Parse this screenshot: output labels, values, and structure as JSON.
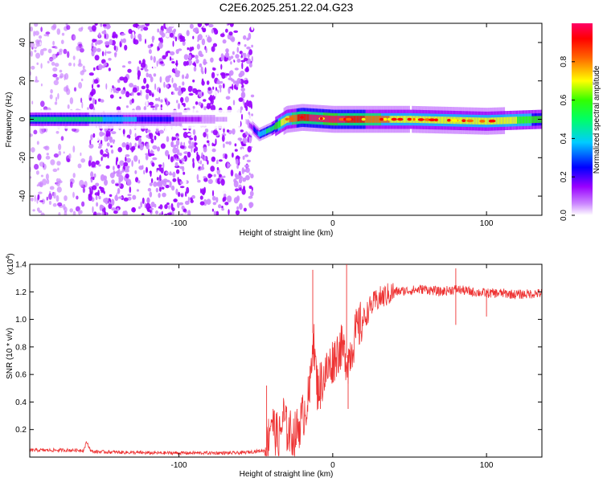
{
  "title": "C2E6.2025.251.22.04.G23",
  "chart_data": [
    {
      "type": "heatmap",
      "xlabel": "Height of straight line (km)",
      "ylabel": "Frequency (Hz)",
      "xlim": [
        -197,
        136
      ],
      "ylim": [
        -50,
        50
      ],
      "x_ticks": [
        -100,
        0,
        100
      ],
      "x_tick_labels": [
        "-100",
        "0",
        "100"
      ],
      "y_ticks": [
        -40,
        -20,
        0,
        20,
        40
      ],
      "y_tick_labels": [
        "-40",
        "-20",
        "0",
        "20",
        "40"
      ],
      "grid": false,
      "colorbar": {
        "label": "Normalized spectral amplitude",
        "range": [
          0.0,
          1.0
        ],
        "ticks": [
          0.0,
          0.2,
          0.4,
          0.6,
          0.8
        ],
        "tick_labels": [
          "0.0",
          "0.2",
          "0.4",
          "0.6",
          "0.8"
        ],
        "colormap": [
          "#ffffff",
          "#9900ff",
          "#0000ff",
          "#00ffff",
          "#00ff00",
          "#ffff00",
          "#ff0000",
          "#ff0066"
        ]
      },
      "signal_track": {
        "description_free": true,
        "x": [
          -197,
          -160,
          -58,
          -48,
          -40,
          -30,
          -20,
          0,
          50,
          100,
          136
        ],
        "freq": [
          0,
          0,
          0,
          -8,
          -5,
          0,
          1,
          0,
          0,
          -1,
          0
        ],
        "amplitude": [
          0.45,
          0.45,
          0,
          0.35,
          0.45,
          0.65,
          0.8,
          0.85,
          0.6,
          0.65,
          0.5
        ]
      },
      "noise_region": {
        "x_range": [
          -197,
          -52
        ],
        "amplitude_range": [
          0.05,
          0.22
        ]
      }
    },
    {
      "type": "line",
      "xlabel": "Height of straight line (km)",
      "ylabel": "SNR (10 * v/v)",
      "y_multiplier_label": "(x10",
      "y_multiplier_exp": "4",
      "y_multiplier_close": ")",
      "xlim": [
        -197,
        136
      ],
      "ylim": [
        0,
        1.4
      ],
      "x_ticks": [
        -100,
        0,
        100
      ],
      "x_tick_labels": [
        "-100",
        "0",
        "100"
      ],
      "y_ticks": [
        0.2,
        0.4,
        0.6,
        0.8,
        1.0,
        1.2,
        1.4
      ],
      "y_tick_labels": [
        "0.2",
        "0.4",
        "0.6",
        "0.8",
        "1.0",
        "1.2",
        "1.4"
      ],
      "series_color": "#ee3333",
      "envelope": {
        "x": [
          -197,
          -162,
          -160,
          -157,
          -120,
          -100,
          -60,
          -43,
          -40,
          -38,
          -35,
          -32,
          -30,
          -25,
          -20,
          -15,
          -13,
          -10,
          -5,
          0,
          5,
          10,
          15,
          20,
          25,
          30,
          40,
          50,
          60,
          70,
          80,
          90,
          100,
          110,
          120,
          136
        ],
        "y": [
          0.05,
          0.05,
          0.11,
          0.04,
          0.03,
          0.03,
          0.03,
          0.05,
          0.3,
          0.2,
          0.12,
          0.3,
          0.2,
          0.15,
          0.28,
          0.45,
          0.9,
          0.5,
          0.6,
          0.7,
          0.8,
          0.7,
          0.9,
          1.0,
          1.1,
          1.15,
          1.2,
          1.21,
          1.22,
          1.2,
          1.22,
          1.2,
          1.19,
          1.19,
          1.18,
          1.19
        ]
      },
      "spikes": [
        {
          "x": -43,
          "y": 0.52
        },
        {
          "x": -13,
          "y": 1.36
        },
        {
          "x": -8,
          "y": 0.35
        },
        {
          "x": 9,
          "y": 1.42
        },
        {
          "x": 10,
          "y": 0.35
        },
        {
          "x": 80,
          "y": 1.37
        },
        {
          "x": 80,
          "y": 0.96
        },
        {
          "x": 100,
          "y": 1.02
        }
      ]
    }
  ]
}
